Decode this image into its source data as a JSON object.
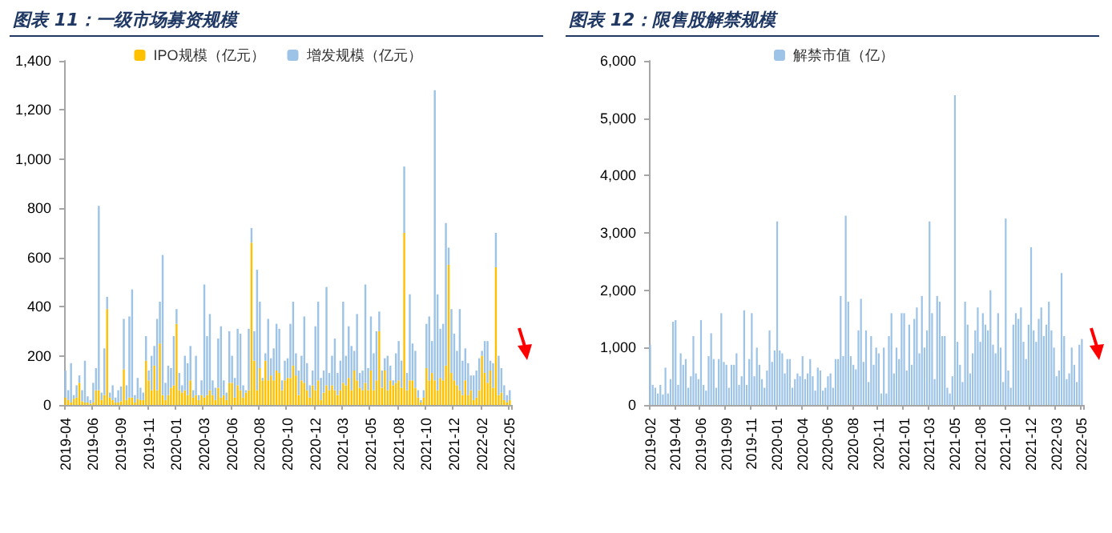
{
  "chart_data": [
    {
      "type": "bar",
      "title": "图表 11：一级市场募资规模",
      "stacked": true,
      "legend": "top",
      "categories": [
        "2019-04",
        null,
        null,
        null,
        null,
        null,
        null,
        null,
        null,
        null,
        "2019-06",
        null,
        null,
        null,
        null,
        null,
        null,
        null,
        null,
        null,
        "2019-09",
        null,
        null,
        null,
        null,
        null,
        null,
        null,
        null,
        null,
        "2019-11",
        null,
        null,
        null,
        null,
        null,
        null,
        null,
        null,
        null,
        "2020-01",
        null,
        null,
        null,
        null,
        null,
        null,
        null,
        null,
        null,
        "2020-03",
        null,
        null,
        null,
        null,
        null,
        null,
        null,
        null,
        null,
        "2020-06",
        null,
        null,
        null,
        null,
        null,
        null,
        null,
        null,
        null,
        "2020-08",
        null,
        null,
        null,
        null,
        null,
        null,
        null,
        null,
        null,
        "2020-10",
        null,
        null,
        null,
        null,
        null,
        null,
        null,
        null,
        null,
        "2020-12",
        null,
        null,
        null,
        null,
        null,
        null,
        null,
        null,
        null,
        "2021-03",
        null,
        null,
        null,
        null,
        null,
        null,
        null,
        null,
        null,
        "2021-05",
        null,
        null,
        null,
        null,
        null,
        null,
        null,
        null,
        null,
        "2021-08",
        null,
        null,
        null,
        null,
        null,
        null,
        null,
        null,
        null,
        "2021-10",
        null,
        null,
        null,
        null,
        null,
        null,
        null,
        null,
        null,
        "2021-12",
        null,
        null,
        null,
        null,
        null,
        null,
        null,
        null,
        null,
        "2022-02",
        null,
        null,
        null,
        null,
        null,
        null,
        null,
        null,
        null,
        "2022-05"
      ],
      "series": [
        {
          "name": "IPO规模（亿元）",
          "color": "#ffc000",
          "values": [
            30,
            20,
            10,
            25,
            30,
            90,
            15,
            10,
            10,
            5,
            10,
            60,
            60,
            20,
            40,
            390,
            30,
            20,
            10,
            10,
            15,
            145,
            20,
            30,
            30,
            10,
            25,
            20,
            20,
            180,
            100,
            60,
            160,
            60,
            250,
            40,
            20,
            40,
            70,
            80,
            330,
            60,
            50,
            60,
            40,
            100,
            30,
            40,
            20,
            40,
            30,
            40,
            60,
            40,
            20,
            70,
            30,
            40,
            20,
            90,
            90,
            30,
            80,
            60,
            30,
            50,
            60,
            660,
            180,
            60,
            150,
            100,
            180,
            100,
            120,
            100,
            140,
            130,
            60,
            100,
            110,
            110,
            160,
            120,
            40,
            100,
            90,
            60,
            30,
            80,
            60,
            100,
            20,
            50,
            80,
            60,
            80,
            60,
            40,
            60,
            90,
            80,
            110,
            60,
            140,
            100,
            70,
            60,
            90,
            60,
            140,
            60,
            100,
            300,
            70,
            140,
            60,
            100,
            80,
            90,
            100,
            70,
            700,
            60,
            100,
            100,
            70,
            30,
            10,
            30,
            150,
            100,
            130,
            100,
            60,
            110,
            100,
            160,
            570,
            130,
            100,
            80,
            60,
            40,
            100,
            40,
            60,
            20,
            30,
            60,
            200,
            130,
            90,
            140,
            70,
            560,
            40,
            50,
            20,
            10,
            20
          ]
        },
        {
          "name": "增发规模（亿元）",
          "color": "#9dc3e6",
          "values": [
            110,
            40,
            160,
            15,
            50,
            30,
            45,
            170,
            25,
            15,
            80,
            90,
            750,
            30,
            190,
            50,
            20,
            60,
            20,
            50,
            60,
            205,
            60,
            330,
            440,
            30,
            85,
            50,
            30,
            100,
            40,
            140,
            80,
            290,
            170,
            570,
            70,
            120,
            80,
            200,
            60,
            70,
            30,
            140,
            130,
            140,
            30,
            160,
            20,
            60,
            460,
            240,
            310,
            60,
            50,
            200,
            290,
            60,
            30,
            210,
            110,
            80,
            230,
            230,
            50,
            10,
            250,
            60,
            120,
            490,
            270,
            10,
            30,
            250,
            70,
            130,
            190,
            180,
            40,
            80,
            80,
            220,
            260,
            90,
            100,
            100,
            270,
            110,
            50,
            60,
            260,
            320,
            90,
            90,
            400,
            70,
            120,
            210,
            90,
            120,
            330,
            120,
            210,
            180,
            80,
            270,
            60,
            80,
            400,
            90,
            220,
            150,
            200,
            80,
            70,
            50,
            140,
            60,
            20,
            120,
            160,
            110,
            270,
            70,
            350,
            150,
            150,
            30,
            10,
            30,
            180,
            260,
            130,
            1180,
            390,
            200,
            230,
            580,
            70,
            260,
            190,
            140,
            330,
            140,
            130,
            130,
            60,
            100,
            110,
            130,
            20,
            130,
            170,
            40,
            100,
            140,
            160,
            100,
            60,
            30,
            40
          ]
        }
      ],
      "ylim": [
        0,
        1400
      ],
      "yticks": [
        0,
        200,
        400,
        600,
        800,
        {
          "value": 1000,
          "label": "1,000"
        },
        {
          "value": 1200,
          "label": "1,200"
        },
        {
          "value": 1400,
          "label": "1,400"
        }
      ],
      "grid": false
    },
    {
      "type": "bar",
      "title": "图表 12：限售股解禁规模",
      "legend": "top",
      "categories": [
        "2019-02",
        null,
        null,
        null,
        null,
        null,
        null,
        null,
        null,
        null,
        "2019-04",
        null,
        null,
        null,
        null,
        null,
        null,
        null,
        null,
        null,
        "2019-06",
        null,
        null,
        null,
        null,
        null,
        null,
        null,
        null,
        null,
        "2019-09",
        null,
        null,
        null,
        null,
        null,
        null,
        null,
        null,
        null,
        "2019-11",
        null,
        null,
        null,
        null,
        null,
        null,
        null,
        null,
        null,
        "2020-01",
        null,
        null,
        null,
        null,
        null,
        null,
        null,
        null,
        null,
        "2020-04",
        null,
        null,
        null,
        null,
        null,
        null,
        null,
        null,
        null,
        "2020-06",
        null,
        null,
        null,
        null,
        null,
        null,
        null,
        null,
        null,
        "2020-08",
        null,
        null,
        null,
        null,
        null,
        null,
        null,
        null,
        null,
        "2020-11",
        null,
        null,
        null,
        null,
        null,
        null,
        null,
        null,
        null,
        "2021-01",
        null,
        null,
        null,
        null,
        null,
        null,
        null,
        null,
        null,
        "2021-03",
        null,
        null,
        null,
        null,
        null,
        null,
        null,
        null,
        null,
        "2021-05",
        null,
        null,
        null,
        null,
        null,
        null,
        null,
        null,
        null,
        "2021-08",
        null,
        null,
        null,
        null,
        null,
        null,
        null,
        null,
        null,
        "2021-10",
        null,
        null,
        null,
        null,
        null,
        null,
        null,
        null,
        null,
        "2021-12",
        null,
        null,
        null,
        null,
        null,
        null,
        null,
        null,
        null,
        "2022-03",
        null,
        null,
        null,
        null,
        null,
        null,
        null,
        null,
        null,
        "2022-05"
      ],
      "series": [
        {
          "name": "解禁市值（亿）",
          "color": "#9dc3e6",
          "values": [
            1050,
            350,
            300,
            200,
            350,
            180,
            650,
            200,
            450,
            1450,
            1480,
            350,
            900,
            700,
            800,
            300,
            500,
            1200,
            550,
            450,
            1480,
            350,
            250,
            850,
            1250,
            800,
            300,
            800,
            1600,
            750,
            700,
            300,
            700,
            700,
            900,
            350,
            500,
            1650,
            350,
            800,
            1600,
            500,
            1000,
            700,
            450,
            300,
            600,
            1300,
            750,
            950,
            3200,
            950,
            900,
            550,
            800,
            800,
            300,
            450,
            550,
            500,
            850,
            450,
            550,
            800,
            500,
            250,
            650,
            600,
            250,
            300,
            500,
            550,
            300,
            800,
            800,
            1900,
            850,
            3300,
            1800,
            850,
            700,
            620,
            1300,
            1850,
            750,
            1300,
            400,
            1200,
            700,
            1000,
            900,
            200,
            1000,
            200,
            1200,
            1600,
            550,
            1000,
            800,
            1600,
            1600,
            600,
            1400,
            700,
            1500,
            1700,
            900,
            1900,
            1000,
            1300,
            3200,
            1600,
            450,
            1900,
            1800,
            1200,
            1200,
            300,
            200,
            500,
            5400,
            1100,
            700,
            400,
            1800,
            1400,
            550,
            900,
            1300,
            1700,
            1100,
            1600,
            1400,
            1300,
            2000,
            1050,
            900,
            1600,
            1000,
            400,
            3250,
            600,
            300,
            1400,
            1600,
            1500,
            1700,
            1100,
            800,
            1400,
            2750,
            1300,
            1100,
            1500,
            1700,
            1200,
            1400,
            1800,
            1300,
            1000,
            500,
            600,
            2300,
            1200,
            450,
            550,
            1000,
            700,
            400,
            1050,
            1150
          ]
        }
      ],
      "ylim": [
        0,
        6000
      ],
      "yticks": [
        0,
        {
          "value": 1000,
          "label": "1,000"
        },
        {
          "value": 2000,
          "label": "2,000"
        },
        {
          "value": 3000,
          "label": "3,000"
        },
        {
          "value": 4000,
          "label": "4,000"
        },
        {
          "value": 5000,
          "label": "5,000"
        },
        {
          "value": 6000,
          "label": "6,000"
        }
      ],
      "grid": false
    }
  ]
}
